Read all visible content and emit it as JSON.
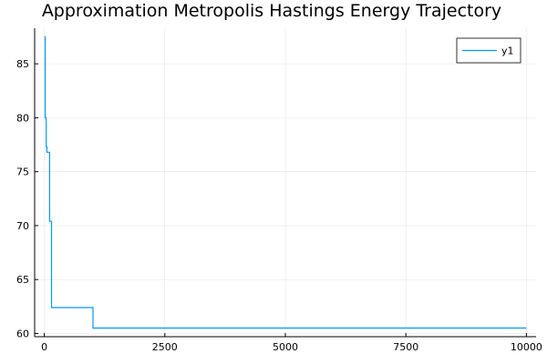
{
  "chart_data": {
    "type": "line",
    "title": "Approximation Metropolis Hastings  Energy Trajectory",
    "xlabel": "",
    "ylabel": "",
    "xlim": [
      -200,
      10200
    ],
    "ylim": [
      59.7,
      88.3
    ],
    "x_ticks": [
      0,
      2500,
      5000,
      7500,
      10000
    ],
    "x_tick_labels": [
      "0",
      "2500",
      "5000",
      "7500",
      "10000"
    ],
    "y_ticks": [
      60,
      65,
      70,
      75,
      80,
      85
    ],
    "y_tick_labels": [
      "60",
      "65",
      "70",
      "75",
      "80",
      "85"
    ],
    "grid": true,
    "legend_position": "top-right",
    "series": [
      {
        "name": "y1",
        "color": "#009af9",
        "step": true,
        "points": [
          [
            0,
            87.5
          ],
          [
            20,
            80.0
          ],
          [
            40,
            77.3
          ],
          [
            55,
            76.8
          ],
          [
            100,
            76.8
          ],
          [
            110,
            70.4
          ],
          [
            140,
            70.4
          ],
          [
            150,
            62.4
          ],
          [
            1000,
            62.4
          ],
          [
            1010,
            60.5
          ],
          [
            10000,
            60.5
          ]
        ]
      }
    ]
  }
}
